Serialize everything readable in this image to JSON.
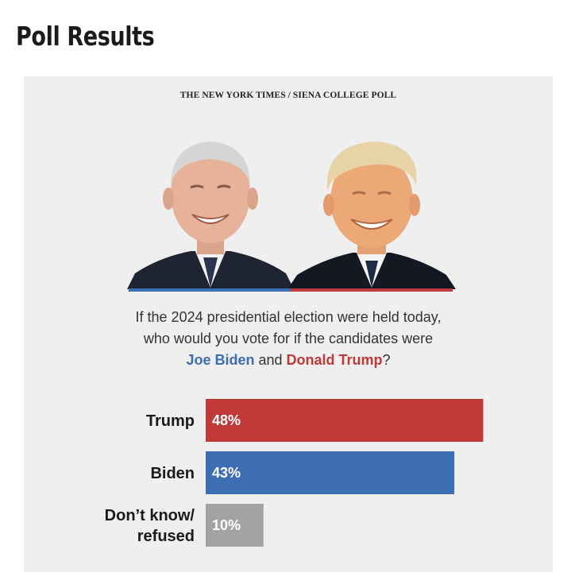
{
  "page": {
    "title": "Poll Results"
  },
  "graphic": {
    "source": "THE NEW YORK TIMES / SIENA COLLEGE POLL",
    "portraits": [
      {
        "name": "biden-portrait-icon",
        "accent": "#3b6fb6"
      },
      {
        "name": "trump-portrait-icon",
        "accent": "#c0393b"
      }
    ],
    "question": {
      "line1": "If the 2024 presidential election were held today,",
      "line2": "who would you vote for if the candidates were",
      "candidate1": "Joe Biden",
      "connector": "and",
      "candidate2": "Donald Trump",
      "end": "?"
    },
    "colors": {
      "biden": "#3d6eb4",
      "trump": "#c03a3a",
      "other": "#a3a3a3",
      "background": "#efefef"
    }
  },
  "chart_data": {
    "type": "bar",
    "orientation": "horizontal",
    "title": "",
    "xlabel": "",
    "ylabel": "",
    "categories": [
      "Trump",
      "Biden",
      "Don’t know/ refused"
    ],
    "category_lines": [
      [
        "Trump"
      ],
      [
        "Biden"
      ],
      [
        "Don’t know/",
        "refused"
      ]
    ],
    "values": [
      48,
      43,
      10
    ],
    "value_labels": [
      "48%",
      "43%",
      "10%"
    ],
    "bar_colors": [
      "#c03a3a",
      "#3d6eb4",
      "#a3a3a3"
    ],
    "xlim": [
      0,
      100
    ],
    "grid": false,
    "legend": "none"
  }
}
